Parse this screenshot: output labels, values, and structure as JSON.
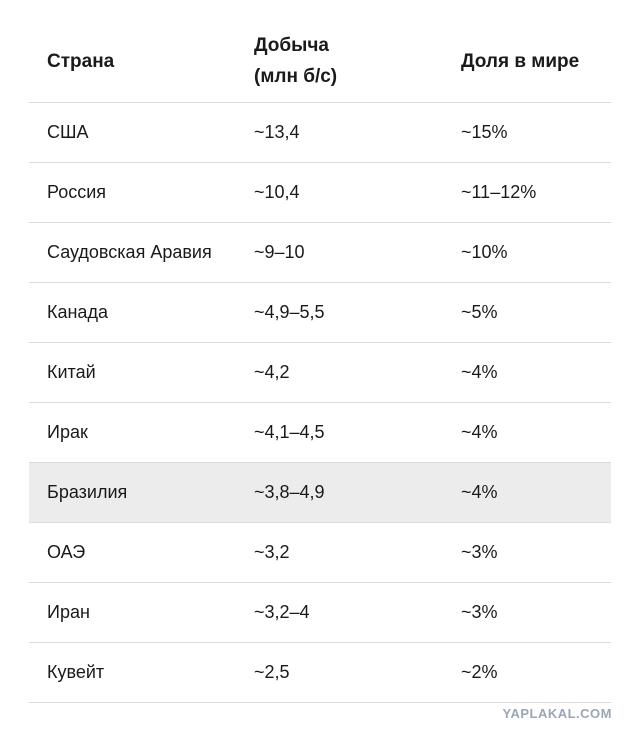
{
  "table": {
    "header": [
      "Страна",
      "Добыча (млн б/с)",
      "Доля в мире"
    ],
    "rows": [
      [
        "США",
        "~13,4",
        "~15%"
      ],
      [
        "Россия",
        "~10,4",
        "~11–12%"
      ],
      [
        "Саудовская Аравия",
        "~9–10",
        "~10%"
      ],
      [
        "Канада",
        "~4,9–5,5",
        "~5%"
      ],
      [
        "Китай",
        "~4,2",
        "~4%"
      ],
      [
        "Ирак",
        "~4,1–4,5",
        "~4%"
      ],
      [
        "Бразилия",
        "~3,8–4,9",
        "~4%"
      ],
      [
        "ОАЭ",
        "~3,2",
        "~3%"
      ],
      [
        "Иран",
        "~3,2–4",
        "~3%"
      ],
      [
        "Кувейт",
        "~2,5",
        "~2%"
      ]
    ]
  },
  "watermark": "YAPLAKAL.COM"
}
